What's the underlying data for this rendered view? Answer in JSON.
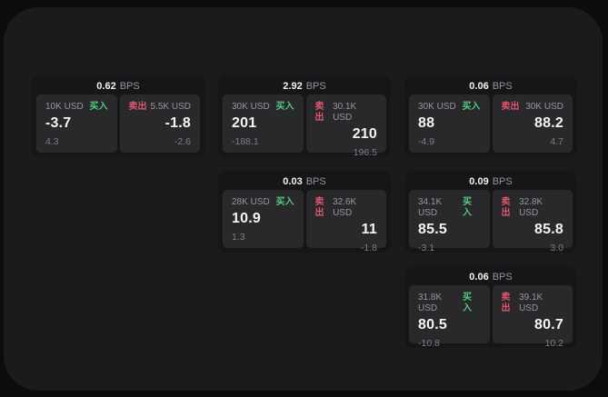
{
  "labels": {
    "bps": "BPS",
    "buy": "买入",
    "sell": "卖出"
  },
  "colors": {
    "background": "#0c0c0d",
    "panel": "#1b1b1d",
    "card": "#161618",
    "cell": "#29292c",
    "buy_green": "#4fcb7e",
    "sell_red": "#e0566e"
  },
  "cards": [
    {
      "bps": "0.62",
      "buy": {
        "size": "10K USD",
        "value": "-3.7",
        "sub": "4.3"
      },
      "sell": {
        "size": "5.5K USD",
        "value": "-1.8",
        "sub": "-2.6"
      }
    },
    {
      "bps": "2.92",
      "buy": {
        "size": "30K USD",
        "value": "201",
        "sub": "-188.1"
      },
      "sell": {
        "size": "30.1K USD",
        "value": "210",
        "sub": "196.5"
      }
    },
    {
      "bps": "0.06",
      "buy": {
        "size": "30K USD",
        "value": "88",
        "sub": "-4.9"
      },
      "sell": {
        "size": "30K USD",
        "value": "88.2",
        "sub": "4.7"
      }
    },
    {
      "bps": "0.03",
      "buy": {
        "size": "28K USD",
        "value": "10.9",
        "sub": "1.3"
      },
      "sell": {
        "size": "32.6K USD",
        "value": "11",
        "sub": "-1.8"
      }
    },
    {
      "bps": "0.09",
      "buy": {
        "size": "34.1K USD",
        "value": "85.5",
        "sub": "-3.1"
      },
      "sell": {
        "size": "32.8K USD",
        "value": "85.8",
        "sub": "3.0"
      }
    },
    {
      "bps": "0.06",
      "buy": {
        "size": "31.8K USD",
        "value": "80.5",
        "sub": "-10.8"
      },
      "sell": {
        "size": "39.1K USD",
        "value": "80.7",
        "sub": "10.2"
      }
    }
  ]
}
